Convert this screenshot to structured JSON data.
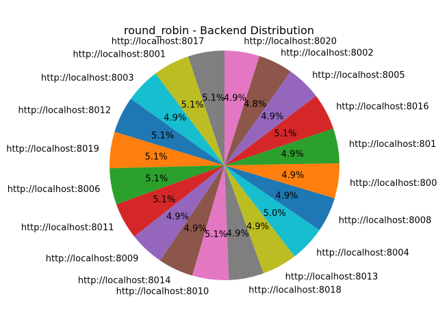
{
  "chart_data": {
    "type": "pie",
    "title": "round_robin - Backend Distribution",
    "start_angle_deg": 90,
    "direction": "counterclockwise",
    "slices": [
      {
        "label": "http://localhost:8017",
        "value": 5.1,
        "pct_label": "5.1%",
        "color": "#7f7f7f"
      },
      {
        "label": "http://localhost:8001",
        "value": 5.1,
        "pct_label": "5.1%",
        "color": "#bcbd22"
      },
      {
        "label": "http://localhost:8003",
        "value": 4.9,
        "pct_label": "4.9%",
        "color": "#17becf"
      },
      {
        "label": "http://localhost:8012",
        "value": 5.1,
        "pct_label": "5.1%",
        "color": "#1f77b4"
      },
      {
        "label": "http://localhost:8019",
        "value": 5.1,
        "pct_label": "5.1%",
        "color": "#ff7f0e"
      },
      {
        "label": "http://localhost:8006",
        "value": 5.1,
        "pct_label": "5.1%",
        "color": "#2ca02c"
      },
      {
        "label": "http://localhost:8011",
        "value": 5.1,
        "pct_label": "5.1%",
        "color": "#d62728"
      },
      {
        "label": "http://localhost:8009",
        "value": 4.9,
        "pct_label": "4.9%",
        "color": "#9467bd"
      },
      {
        "label": "http://localhost:8014",
        "value": 4.9,
        "pct_label": "4.9%",
        "color": "#8c564b"
      },
      {
        "label": "http://localhost:8010",
        "value": 5.1,
        "pct_label": "5.1%",
        "color": "#e377c2"
      },
      {
        "label": "http://localhost:8018",
        "value": 4.9,
        "pct_label": "4.9%",
        "color": "#7f7f7f"
      },
      {
        "label": "http://localhost:8013",
        "value": 4.9,
        "pct_label": "4.9%",
        "color": "#bcbd22"
      },
      {
        "label": "http://localhost:8004",
        "value": 5.0,
        "pct_label": "5.0%",
        "color": "#17becf"
      },
      {
        "label": "http://localhost:8008",
        "value": 4.9,
        "pct_label": "4.9%",
        "color": "#1f77b4"
      },
      {
        "label": "http://localhost:800",
        "value": 4.9,
        "pct_label": "4.9%",
        "color": "#ff7f0e"
      },
      {
        "label": "http://localhost:801",
        "value": 4.9,
        "pct_label": "4.9%",
        "color": "#2ca02c"
      },
      {
        "label": "http://localhost:8016",
        "value": 5.1,
        "pct_label": "5.1%",
        "color": "#d62728"
      },
      {
        "label": "http://localhost:8005",
        "value": 4.9,
        "pct_label": "4.9%",
        "color": "#9467bd"
      },
      {
        "label": "http://localhost:8002",
        "value": 4.8,
        "pct_label": "4.8%",
        "color": "#8c564b"
      },
      {
        "label": "http://localhost:8020",
        "value": 4.9,
        "pct_label": "4.9%",
        "color": "#e377c2"
      }
    ]
  }
}
